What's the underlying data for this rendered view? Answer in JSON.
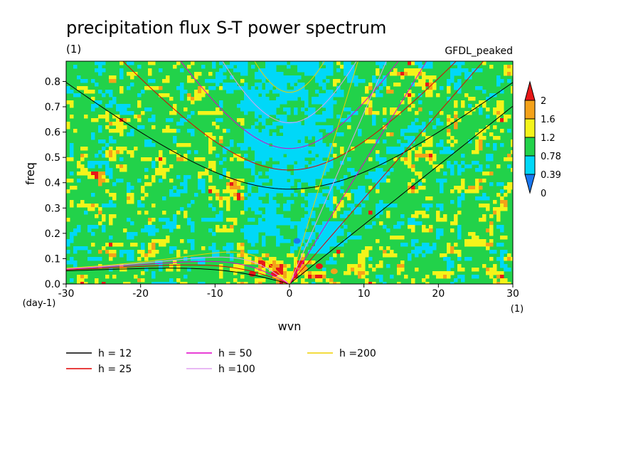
{
  "chart_data": {
    "type": "heatmap",
    "title": "precipitation flux S-T power spectrum",
    "subtitle_left": "(1)",
    "subtitle_right": "GFDL_peaked",
    "xlabel": "wvn",
    "ylabel": "freq",
    "x_unit": "(1)",
    "y_unit": "(day-1)",
    "xlim": [
      -30,
      30
    ],
    "ylim": [
      0,
      0.88
    ],
    "xticks": [
      -30,
      -20,
      -10,
      0,
      10,
      20,
      30
    ],
    "yticks": [
      0.0,
      0.1,
      0.2,
      0.3,
      0.4,
      0.5,
      0.6,
      0.7,
      0.8
    ],
    "colorbar": {
      "levels": [
        "0",
        "0.39",
        "0.78",
        "1.2",
        "1.6",
        "2"
      ],
      "colors": [
        "#1a78f0",
        "#00d8f8",
        "#22d24a",
        "#f4f41a",
        "#f4a21a",
        "#e81818"
      ]
    },
    "field_levels": {
      "background": 2,
      "regions_low": [
        {
          "x": -2,
          "y": 0.04,
          "level": 5
        },
        {
          "x": -5,
          "y": 0.04,
          "level": 5
        },
        {
          "x": 2,
          "y": 0.06,
          "level": 4
        },
        {
          "x": 4,
          "y": 0.07,
          "level": 5
        },
        {
          "x": 6,
          "y": 0.05,
          "level": 4
        },
        {
          "x": 1,
          "y": 0.17,
          "level": 0
        }
      ]
    },
    "series": [
      {
        "name": "h = 12",
        "h": 12,
        "color": "#000000"
      },
      {
        "name": "h = 25",
        "h": 25,
        "color": "#e00000"
      },
      {
        "name": "h = 50",
        "h": 50,
        "color": "#e000c8"
      },
      {
        "name": "h =100",
        "h": 100,
        "color": "#e0a0f0"
      },
      {
        "name": "h =200",
        "h": 200,
        "color": "#f0d000"
      }
    ]
  }
}
